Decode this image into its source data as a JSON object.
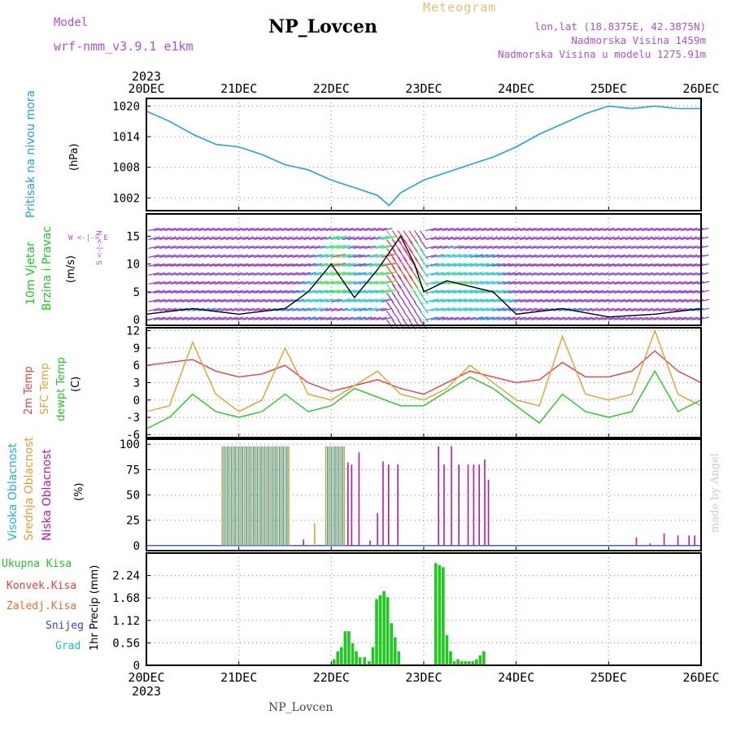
{
  "header": {
    "title": "NP_Lovcen",
    "model_label": "Model",
    "model_name": "wrf-nmm_v3.9.1 e1km",
    "meteogram": "Meteogram",
    "loc_line1": "lon,lat (18.8375E, 42.3875N)",
    "loc_line2": "Nadmorska Visina 1459m",
    "loc_line3": "Nadmorska Visina u modelu 1275.91m",
    "bottom_name": "NP_Lovcen",
    "watermark": "made by Angel"
  },
  "colors": {
    "pressure": "#20a0e8",
    "temp2m": "#e84040",
    "sfc": "#e0a030",
    "dewpt": "#20c820",
    "high_cloud": "#20b0e0",
    "mid_cloud": "#e0a030",
    "low_cloud": "#c01890",
    "precip": "#20c820",
    "grid": "#999999"
  },
  "time_axis": {
    "year": "2023",
    "ticks": [
      "20DEC",
      "21DEC",
      "22DEC",
      "23DEC",
      "24DEC",
      "25DEC",
      "26DEC"
    ]
  },
  "panel_labels": {
    "pressure": {
      "name": "Pritisak na nivou mora",
      "unit": "(hPa)"
    },
    "wind": {
      "name1": "10m Vjetar",
      "name2": "Brzina i Pravac",
      "unit": "(m/s)",
      "compass": "W <-|-> E",
      "compass2": "S <-|-> N"
    },
    "temp": {
      "l1": "2m Temp",
      "l2": "SFC Temp",
      "l3": "dewpt Temp",
      "unit": "(C)"
    },
    "cloud": {
      "l1": "Visoka Oblacnost",
      "l2": "Srednja Oblacnost",
      "l3": "Niska Oblacnost",
      "unit": "(%)"
    },
    "precip": {
      "l1": "Ukupna Kisa",
      "l2": "Konvek.Kisa",
      "l3": "Zaledj.Kisa",
      "l4": "Snijeg",
      "l5": "Grad",
      "unit": "1hr Precip (mm)"
    }
  },
  "chart_data": [
    {
      "type": "line",
      "title": "Pritisak na nivou mora",
      "ylabel": "(hPa)",
      "ylim": [
        999.5,
        1021.5
      ],
      "yticks": [
        1002,
        1008,
        1014,
        1020
      ],
      "x_days": [
        0,
        0.25,
        0.5,
        0.75,
        1.0,
        1.25,
        1.5,
        1.75,
        2.0,
        2.25,
        2.5,
        2.625,
        2.75,
        3.0,
        3.25,
        3.5,
        3.75,
        4.0,
        4.25,
        4.5,
        4.75,
        5.0,
        5.25,
        5.5,
        5.75,
        6.0
      ],
      "series": [
        {
          "values": [
            1019,
            1017,
            1014.5,
            1012.5,
            1012,
            1010.5,
            1008.5,
            1007.5,
            1005.5,
            1004,
            1002.5,
            1000.5,
            1003,
            1005.5,
            1007,
            1008.5,
            1010,
            1012,
            1014.5,
            1016.5,
            1018.5,
            1020,
            1019.5,
            1020,
            1019.5,
            1019.5
          ]
        }
      ],
      "grid": true
    },
    {
      "type": "line",
      "title": "10m Vjetar Brzina i Pravac",
      "ylabel": "(m/s)",
      "ylim": [
        -1,
        19
      ],
      "yticks": [
        0,
        5,
        10,
        15
      ],
      "x_days": [
        0,
        0.5,
        1.0,
        1.5,
        1.75,
        2.0,
        2.25,
        2.5,
        2.75,
        2.9,
        3.0,
        3.25,
        3.5,
        3.75,
        4.0,
        4.5,
        5.0,
        5.5,
        6.0
      ],
      "series": [
        {
          "values": [
            1,
            2,
            1,
            2,
            5,
            10,
            4,
            9,
            15,
            10,
            5,
            7,
            6,
            5,
            1,
            2,
            0.5,
            1,
            2
          ]
        }
      ],
      "grid": true
    },
    {
      "type": "line",
      "title": "2m / SFC / dewpt Temp",
      "ylabel": "(C)",
      "ylim": [
        -6.5,
        12.5
      ],
      "yticks": [
        -6,
        -3,
        0,
        3,
        6,
        9,
        12
      ],
      "x_days": [
        0,
        0.25,
        0.5,
        0.75,
        1.0,
        1.25,
        1.5,
        1.75,
        2.0,
        2.25,
        2.5,
        2.75,
        3.0,
        3.25,
        3.5,
        3.75,
        4.0,
        4.25,
        4.5,
        4.75,
        5.0,
        5.25,
        5.5,
        5.75,
        6.0
      ],
      "series": [
        {
          "values": [
            6,
            6.5,
            7,
            5,
            4,
            4.5,
            6,
            3,
            1.5,
            2.5,
            3.5,
            2,
            1,
            3,
            5,
            4,
            3,
            3.5,
            6.5,
            4,
            4,
            5,
            8.5,
            5,
            3
          ]
        },
        {
          "values": [
            -2,
            -1,
            10,
            1,
            -2,
            0,
            9,
            1,
            0,
            2.5,
            5,
            1,
            0,
            2,
            6,
            3,
            0,
            -1,
            11,
            1,
            0,
            1,
            12,
            1,
            -1
          ]
        },
        {
          "values": [
            -5,
            -3,
            1,
            -2,
            -3,
            -2,
            1,
            -2,
            -1,
            2,
            0.5,
            -1,
            -1,
            1.5,
            4,
            2,
            -1,
            -4,
            1,
            -2,
            -3,
            -2,
            5,
            -2,
            0
          ]
        }
      ],
      "grid": true
    },
    {
      "type": "bar",
      "title": "Oblacnost",
      "ylabel": "(%)",
      "ylim": [
        -5,
        105
      ],
      "yticks": [
        0,
        25,
        50,
        75,
        100
      ],
      "series": [
        {
          "bars": [
            [
              0.84,
              98
            ],
            [
              0.88,
              98
            ],
            [
              0.92,
              98
            ],
            [
              0.96,
              98
            ],
            [
              1.0,
              98
            ],
            [
              1.04,
              98
            ],
            [
              1.08,
              98
            ],
            [
              1.12,
              98
            ],
            [
              1.16,
              98
            ],
            [
              1.2,
              98
            ],
            [
              1.24,
              98
            ],
            [
              1.28,
              98
            ],
            [
              1.32,
              98
            ],
            [
              1.36,
              98
            ],
            [
              1.4,
              98
            ],
            [
              1.44,
              98
            ],
            [
              1.48,
              98
            ],
            [
              1.52,
              98
            ],
            [
              1.96,
              98
            ],
            [
              2.0,
              98
            ],
            [
              2.04,
              98
            ],
            [
              2.08,
              98
            ],
            [
              2.12,
              98
            ]
          ]
        },
        {
          "bars": [
            [
              0.82,
              98
            ],
            [
              0.86,
              98
            ],
            [
              0.9,
              98
            ],
            [
              0.94,
              98
            ],
            [
              0.98,
              98
            ],
            [
              1.02,
              98
            ],
            [
              1.06,
              98
            ],
            [
              1.1,
              98
            ],
            [
              1.14,
              98
            ],
            [
              1.18,
              98
            ],
            [
              1.22,
              98
            ],
            [
              1.26,
              98
            ],
            [
              1.3,
              98
            ],
            [
              1.34,
              98
            ],
            [
              1.38,
              98
            ],
            [
              1.42,
              98
            ],
            [
              1.46,
              98
            ],
            [
              1.5,
              98
            ],
            [
              1.54,
              98
            ],
            [
              1.82,
              22
            ],
            [
              1.94,
              98
            ],
            [
              1.98,
              98
            ],
            [
              2.02,
              98
            ],
            [
              2.06,
              98
            ],
            [
              2.1,
              98
            ],
            [
              2.14,
              98
            ]
          ]
        },
        {
          "bars": [
            [
              1.7,
              6
            ],
            [
              2.18,
              82
            ],
            [
              2.22,
              80
            ],
            [
              2.3,
              92
            ],
            [
              2.42,
              5
            ],
            [
              2.5,
              32
            ],
            [
              2.56,
              83
            ],
            [
              2.62,
              80
            ],
            [
              2.72,
              80
            ],
            [
              3.16,
              98
            ],
            [
              3.22,
              80
            ],
            [
              3.3,
              98
            ],
            [
              3.38,
              80
            ],
            [
              3.48,
              80
            ],
            [
              3.54,
              80
            ],
            [
              3.6,
              80
            ],
            [
              3.66,
              85
            ],
            [
              3.7,
              65
            ],
            [
              5.3,
              8
            ],
            [
              5.45,
              2
            ],
            [
              5.6,
              12
            ],
            [
              5.75,
              10
            ],
            [
              5.87,
              10
            ],
            [
              5.93,
              10
            ]
          ]
        }
      ],
      "grid": true
    },
    {
      "type": "bar",
      "title": "1hr Precip",
      "ylabel": "1hr Precip (mm)",
      "ylim": [
        0,
        2.8
      ],
      "yticks": [
        0,
        0.56,
        1.12,
        1.68,
        2.24
      ],
      "series": [
        {
          "bars": [
            [
              2.03,
              0.15
            ],
            [
              2.07,
              0.35
            ],
            [
              2.11,
              0.45
            ],
            [
              2.15,
              0.85
            ],
            [
              2.19,
              0.85
            ],
            [
              2.23,
              0.55
            ],
            [
              2.27,
              0.35
            ],
            [
              2.31,
              0.2
            ],
            [
              2.36,
              0.2
            ],
            [
              2.41,
              0.1
            ],
            [
              2.45,
              0.45
            ],
            [
              2.49,
              1.65
            ],
            [
              2.53,
              1.75
            ],
            [
              2.57,
              1.85
            ],
            [
              2.61,
              1.7
            ],
            [
              2.65,
              1.05
            ],
            [
              2.69,
              0.7
            ],
            [
              2.73,
              0.35
            ],
            [
              3.13,
              2.55
            ],
            [
              3.17,
              2.5
            ],
            [
              3.21,
              2.45
            ],
            [
              3.25,
              0.75
            ],
            [
              3.29,
              0.35
            ],
            [
              3.33,
              0.1
            ],
            [
              3.37,
              0.15
            ],
            [
              3.41,
              0.1
            ],
            [
              3.45,
              0.1
            ],
            [
              3.49,
              0.1
            ],
            [
              3.53,
              0.1
            ],
            [
              3.57,
              0.15
            ],
            [
              3.61,
              0.25
            ],
            [
              3.65,
              0.35
            ]
          ]
        }
      ],
      "grid": true
    }
  ]
}
